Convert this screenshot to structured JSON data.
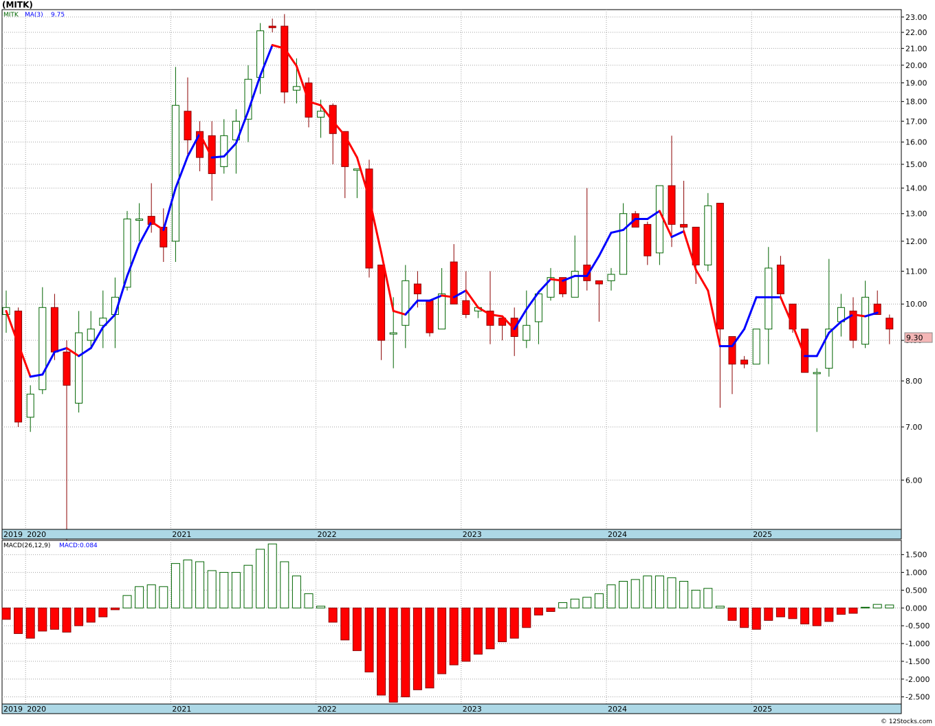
{
  "title": "(MITK)",
  "watermark": "© 12Stocks.com",
  "price_legend": {
    "symbol": "MITK",
    "ma_label": "MA(3)",
    "ma_value": "9.75"
  },
  "macd_legend": {
    "label": "MACD(26,12,9)",
    "value_label": "MACD:0.084"
  },
  "last_price": "9.30",
  "colors": {
    "up": "#006400",
    "down": "#ff0000",
    "ma_up": "#0000ff",
    "ma_down": "#ff0000",
    "axis_band": "#add8e6",
    "grid": "#a0a0a0"
  },
  "chart_data": [
    {
      "type": "candlestick",
      "scale": "log",
      "ylim": [
        5.2,
        23.5
      ],
      "y_ticks": [
        "23.00",
        "22.00",
        "21.00",
        "20.00",
        "19.00",
        "18.00",
        "17.00",
        "16.00",
        "15.00",
        "14.00",
        "13.00",
        "12.00",
        "11.00",
        "10.00",
        "9.00",
        "8.00",
        "7.00",
        "6.00"
      ],
      "x_labels": [
        {
          "text": "2019",
          "index": -1
        },
        {
          "text": "2020",
          "index": 2
        },
        {
          "text": "2021",
          "index": 14
        },
        {
          "text": "2022",
          "index": 26
        },
        {
          "text": "2023",
          "index": 38
        },
        {
          "text": "2024",
          "index": 50
        },
        {
          "text": "2025",
          "index": 62
        }
      ],
      "ohlc": [
        [
          9.7,
          10.4,
          9.2,
          9.9
        ],
        [
          9.8,
          9.9,
          7.0,
          7.1
        ],
        [
          7.2,
          7.9,
          6.9,
          7.7
        ],
        [
          7.8,
          10.5,
          7.7,
          9.9
        ],
        [
          9.9,
          10.3,
          8.5,
          8.7
        ],
        [
          8.7,
          9.0,
          5.0,
          7.9
        ],
        [
          7.5,
          9.8,
          7.3,
          9.2
        ],
        [
          9.0,
          9.8,
          8.8,
          9.3
        ],
        [
          9.4,
          10.4,
          8.8,
          9.6
        ],
        [
          9.7,
          10.8,
          8.8,
          10.2
        ],
        [
          10.5,
          13.1,
          10.4,
          12.8
        ],
        [
          12.8,
          13.4,
          12.0,
          12.8
        ],
        [
          12.9,
          14.2,
          12.3,
          12.6
        ],
        [
          12.5,
          13.2,
          11.3,
          11.8
        ],
        [
          12.0,
          19.9,
          11.3,
          17.8
        ],
        [
          17.5,
          19.3,
          15.4,
          16.1
        ],
        [
          16.5,
          17.0,
          14.7,
          15.3
        ],
        [
          16.3,
          17.0,
          13.5,
          14.6
        ],
        [
          14.9,
          17.1,
          14.6,
          16.3
        ],
        [
          16.1,
          17.6,
          14.6,
          17.0
        ],
        [
          17.1,
          20.0,
          16.0,
          19.2
        ],
        [
          19.3,
          22.6,
          18.4,
          22.1
        ],
        [
          22.4,
          22.9,
          22.0,
          22.3
        ],
        [
          22.4,
          23.2,
          17.9,
          18.5
        ],
        [
          18.6,
          20.4,
          17.9,
          18.8
        ],
        [
          19.0,
          19.3,
          16.7,
          17.2
        ],
        [
          17.2,
          18.1,
          16.2,
          17.5
        ],
        [
          17.8,
          17.9,
          15.0,
          16.4
        ],
        [
          16.5,
          16.5,
          13.6,
          14.9
        ],
        [
          14.8,
          14.8,
          13.6,
          14.8
        ],
        [
          14.8,
          15.2,
          10.8,
          11.1
        ],
        [
          11.2,
          11.2,
          8.5,
          9.0
        ],
        [
          9.2,
          10.2,
          8.3,
          9.2
        ],
        [
          9.4,
          11.2,
          8.8,
          10.7
        ],
        [
          10.6,
          11.0,
          9.9,
          10.3
        ],
        [
          10.1,
          10.1,
          9.1,
          9.2
        ],
        [
          9.3,
          11.1,
          9.3,
          10.3
        ],
        [
          11.3,
          11.9,
          10.0,
          10.0
        ],
        [
          10.1,
          11.0,
          9.6,
          9.7
        ],
        [
          9.8,
          9.8,
          9.6,
          9.9
        ],
        [
          9.8,
          11.0,
          8.9,
          9.4
        ],
        [
          9.6,
          9.6,
          9.0,
          9.4
        ],
        [
          9.6,
          9.9,
          8.6,
          9.1
        ],
        [
          9.0,
          10.4,
          8.8,
          9.4
        ],
        [
          9.5,
          10.4,
          8.9,
          10.3
        ],
        [
          10.2,
          11.1,
          10.1,
          10.8
        ],
        [
          10.8,
          10.8,
          10.2,
          10.3
        ],
        [
          10.2,
          12.2,
          10.2,
          11.0
        ],
        [
          11.2,
          14.0,
          10.4,
          10.7
        ],
        [
          10.7,
          10.7,
          9.5,
          10.6
        ],
        [
          10.7,
          11.1,
          10.4,
          10.9
        ],
        [
          10.9,
          13.4,
          10.9,
          13.0
        ],
        [
          13.0,
          13.1,
          12.5,
          12.5
        ],
        [
          12.6,
          12.7,
          11.2,
          11.5
        ],
        [
          11.6,
          14.1,
          11.2,
          14.1
        ],
        [
          14.1,
          16.3,
          11.8,
          12.6
        ],
        [
          12.6,
          14.3,
          12.3,
          12.5
        ],
        [
          12.5,
          12.5,
          10.6,
          11.2
        ],
        [
          11.2,
          13.8,
          11.0,
          13.3
        ],
        [
          13.4,
          13.4,
          7.4,
          9.3
        ],
        [
          9.1,
          9.1,
          7.7,
          8.4
        ],
        [
          8.5,
          8.6,
          8.3,
          8.4
        ],
        [
          8.4,
          9.3,
          8.4,
          9.3
        ],
        [
          9.3,
          11.8,
          8.4,
          11.1
        ],
        [
          11.2,
          11.5,
          10.2,
          10.3
        ],
        [
          10.0,
          10.0,
          9.2,
          9.3
        ],
        [
          9.3,
          9.3,
          8.2,
          8.2
        ],
        [
          8.2,
          8.3,
          6.9,
          8.2
        ],
        [
          8.3,
          11.4,
          8.1,
          9.3
        ],
        [
          9.5,
          10.3,
          9.1,
          9.9
        ],
        [
          9.8,
          10.2,
          8.8,
          9.0
        ],
        [
          8.9,
          10.7,
          8.8,
          10.2
        ],
        [
          10.0,
          10.4,
          9.7,
          9.7
        ],
        [
          9.6,
          9.7,
          8.9,
          9.3
        ]
      ],
      "ma3": [
        9.8,
        8.9,
        8.1,
        8.15,
        8.7,
        8.8,
        8.6,
        8.8,
        9.35,
        9.7,
        10.85,
        11.9,
        12.7,
        12.4,
        14.0,
        15.35,
        16.4,
        15.3,
        15.35,
        15.95,
        17.5,
        19.4,
        21.2,
        21.0,
        19.95,
        18.0,
        17.8,
        17.0,
        16.3,
        15.3,
        13.6,
        11.6,
        9.8,
        9.7,
        10.1,
        10.1,
        10.25,
        10.2,
        10.4,
        9.9,
        9.7,
        9.65,
        9.3,
        9.85,
        10.35,
        10.75,
        10.7,
        10.85,
        10.85,
        11.5,
        12.3,
        12.4,
        12.8,
        12.8,
        13.1,
        12.15,
        12.35,
        11.05,
        10.4,
        8.85,
        8.85,
        9.3,
        10.2,
        10.2,
        10.2,
        9.4,
        8.6,
        8.6,
        9.2,
        9.5,
        9.7,
        9.65,
        9.75
      ]
    },
    {
      "type": "bar",
      "name": "MACD(26,12,9)",
      "ylim": [
        -2.7,
        1.9
      ],
      "y_ticks": [
        "1.500",
        "1.000",
        "0.500",
        "0.000",
        "-0.500",
        "-1.000",
        "-1.500",
        "-2.000",
        "-2.500"
      ],
      "values": [
        -0.32,
        -0.72,
        -0.85,
        -0.65,
        -0.6,
        -0.68,
        -0.5,
        -0.4,
        -0.25,
        -0.05,
        0.35,
        0.6,
        0.65,
        0.6,
        1.25,
        1.35,
        1.3,
        1.05,
        1.0,
        1.0,
        1.2,
        1.65,
        1.8,
        1.3,
        0.9,
        0.4,
        0.05,
        -0.4,
        -0.9,
        -1.2,
        -1.8,
        -2.45,
        -2.65,
        -2.5,
        -2.3,
        -2.25,
        -1.85,
        -1.6,
        -1.5,
        -1.3,
        -1.15,
        -0.95,
        -0.85,
        -0.55,
        -0.2,
        -0.1,
        0.15,
        0.25,
        0.3,
        0.4,
        0.65,
        0.75,
        0.8,
        0.9,
        0.9,
        0.85,
        0.75,
        0.5,
        0.55,
        0.05,
        -0.35,
        -0.55,
        -0.6,
        -0.35,
        -0.25,
        -0.3,
        -0.45,
        -0.5,
        -0.38,
        -0.18,
        -0.15,
        0.02,
        0.1,
        0.084
      ]
    }
  ]
}
